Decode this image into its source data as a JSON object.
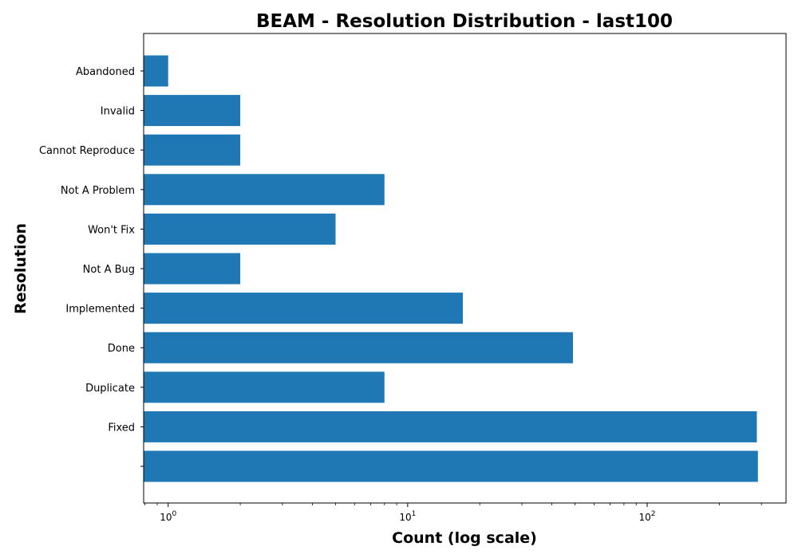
{
  "chart_data": {
    "type": "bar",
    "orientation": "horizontal",
    "title": "BEAM - Resolution Distribution - last100",
    "xlabel": "Count (log scale)",
    "ylabel": "Resolution",
    "x_scale": "log",
    "xlim": [
      0.79,
      380
    ],
    "x_ticks": [
      {
        "value": 1,
        "base": "10",
        "exp": "0"
      },
      {
        "value": 10,
        "base": "10",
        "exp": "1"
      },
      {
        "value": 100,
        "base": "10",
        "exp": "2"
      }
    ],
    "categories": [
      "",
      "Fixed",
      "Duplicate",
      "Done",
      "Implemented",
      "Not A Bug",
      "Won't Fix",
      "Not A Problem",
      "Cannot Reproduce",
      "Invalid",
      "Abandoned"
    ],
    "values": [
      290,
      287,
      8,
      49,
      17,
      2,
      5,
      8,
      2,
      2,
      1
    ],
    "bar_color": "#1f77b4",
    "grid": false,
    "legend": "none"
  }
}
